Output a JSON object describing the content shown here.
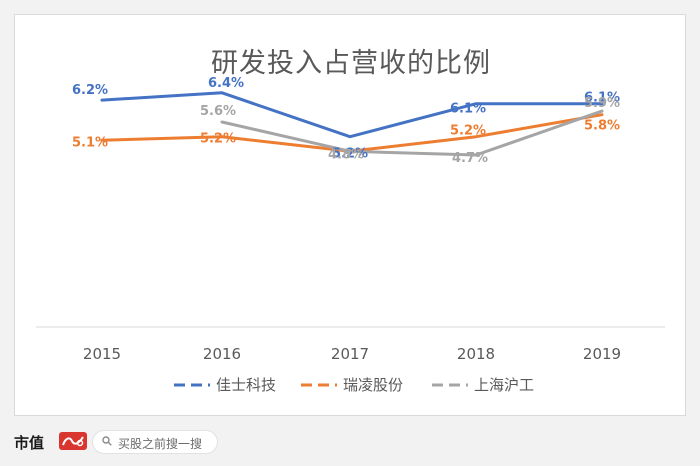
{
  "chart_data": {
    "type": "line",
    "title": "研发投入占营收的比例",
    "categories": [
      "2015",
      "2016",
      "2017",
      "2018",
      "2019"
    ],
    "series": [
      {
        "name": "佳士科技",
        "color": "#4472c4",
        "values": [
          6.2,
          6.4,
          5.2,
          6.1,
          6.1
        ],
        "labels": [
          "6.2%",
          "6.4%",
          "5.2%",
          "6.1%",
          "6.1%"
        ]
      },
      {
        "name": "瑞凌股份",
        "color": "#ed7d31",
        "values": [
          5.1,
          5.2,
          4.8,
          5.2,
          5.8
        ],
        "labels": [
          "5.1%",
          "5.2%",
          "",
          "5.2%",
          "5.8%"
        ]
      },
      {
        "name": "上海沪工",
        "color": "#a5a5a5",
        "values": [
          null,
          5.6,
          4.8,
          4.7,
          5.9
        ],
        "labels": [
          "",
          "5.6%",
          "4.8%",
          "4.7%",
          "5.9%"
        ]
      }
    ],
    "xlabel": "",
    "ylabel": "",
    "ylim": [
      0,
      7
    ],
    "grid": false,
    "line_style": "solid",
    "legend_position": "bottom",
    "legend_line_style": "dashed"
  },
  "footer": {
    "brand": "市值",
    "search_hint": "买股之前搜一搜"
  }
}
